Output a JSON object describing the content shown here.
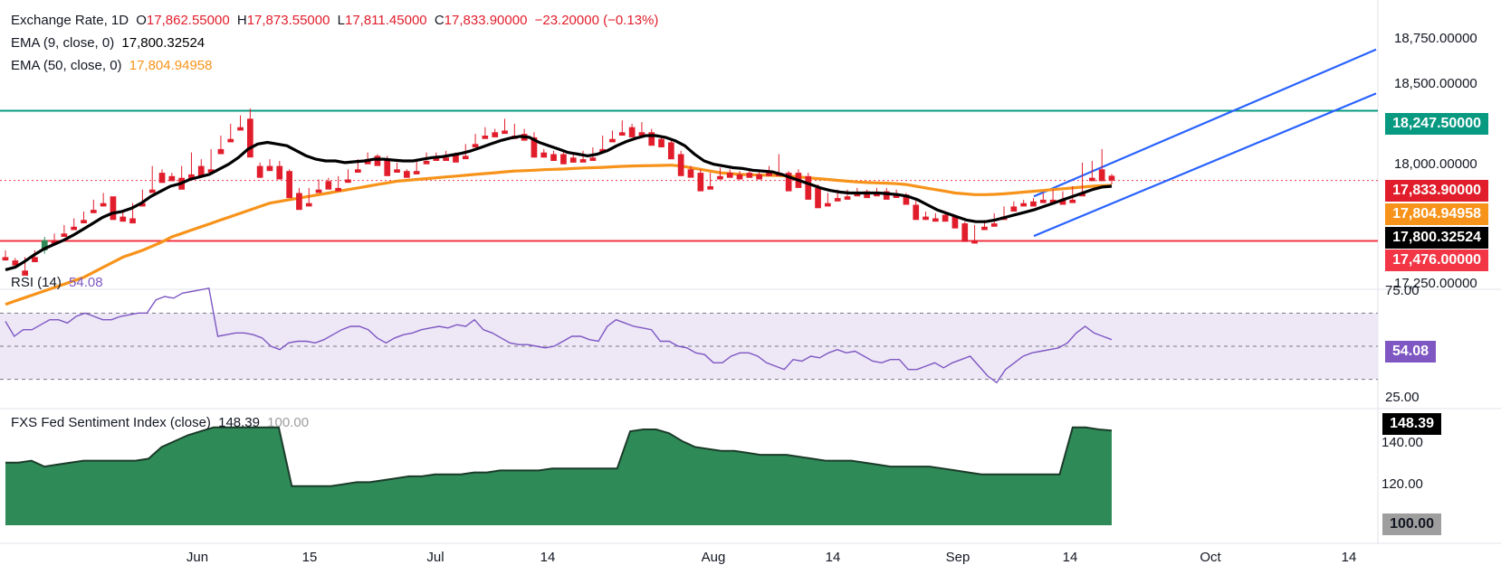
{
  "colors": {
    "up": "#26a69a",
    "upBody": "#2e8b57",
    "down": "#f23645",
    "downBody": "#e11d2b",
    "ema9": "#000000",
    "ema50": "#f7931a",
    "channel": "#2962ff",
    "resistance": "#089981",
    "support": "#f23645",
    "rsi": "#7e57c2",
    "rsiBand": "#ede7f6",
    "fsi": "#2e8b57",
    "fsiLine": "#1b3b2a"
  },
  "legend": {
    "main": {
      "name": "Exchange Rate, 1D",
      "o_label": "O",
      "o": "17,862.55000",
      "h_label": "H",
      "h": "17,873.55000",
      "l_label": "L",
      "l": "17,811.45000",
      "c_label": "C",
      "c": "17,833.90000",
      "chg": "−23.20000 (−0.13%)"
    },
    "ema9": {
      "label": "EMA (9, close, 0)",
      "value": "17,800.32524"
    },
    "ema50": {
      "label": "EMA (50, close, 0)",
      "value": "17,804.94958"
    },
    "rsi": {
      "label": "RSI (14)",
      "value": "54.08"
    },
    "fsi": {
      "label": "FXS Fed Sentiment Index (close)",
      "value": "148.39",
      "ref": "100.00"
    }
  },
  "price_axis": {
    "ticks": [
      "18,750.00000",
      "18,500.00000",
      "18,000.00000",
      "17,250.00000"
    ]
  },
  "badges": {
    "resistance": "18,247.50000",
    "close": "17,833.90000",
    "ema50": "17,804.94958",
    "ema9": "17,800.32524",
    "support": "17,476.00000",
    "rsi": "54.08",
    "fsi": "148.39",
    "fsi_ref": "100.00"
  },
  "rsi_axis": {
    "ticks": [
      "75.00",
      "25.00"
    ]
  },
  "fsi_axis": {
    "ticks": [
      "140.00",
      "120.00"
    ]
  },
  "time_axis": {
    "labels": [
      "Jun",
      "15",
      "Jul",
      "14",
      "Aug",
      "14",
      "Sep",
      "14",
      "Oct",
      "14"
    ]
  },
  "chart_data": {
    "type": "candlestick",
    "ylim": [
      17200,
      18850
    ],
    "levels": {
      "resistance": 18247.5,
      "support": 17476,
      "close": 17833.9
    },
    "channel": {
      "lower": [
        [
          0,
          17505
        ],
        [
          1,
          18350
        ]
      ],
      "upper": [
        [
          0,
          17740
        ],
        [
          1,
          18610
        ]
      ]
    },
    "x_labels": [
      "Jun",
      "15",
      "Jul",
      "14",
      "Aug",
      "14",
      "Sep",
      "14",
      "Oct",
      "14"
    ],
    "candles": [
      [
        17380,
        17420,
        17360,
        17360
      ],
      [
        17360,
        17375,
        17340,
        17330
      ],
      [
        17300,
        17380,
        17290,
        17270
      ],
      [
        17380,
        17420,
        17370,
        17350
      ],
      [
        17420,
        17500,
        17400,
        17480
      ],
      [
        17480,
        17520,
        17470,
        17460
      ],
      [
        17520,
        17570,
        17510,
        17500
      ],
      [
        17560,
        17610,
        17550,
        17540
      ],
      [
        17600,
        17650,
        17590,
        17580
      ],
      [
        17660,
        17720,
        17650,
        17640
      ],
      [
        17700,
        17760,
        17690,
        17680
      ],
      [
        17740,
        17730,
        17620,
        17600
      ],
      [
        17620,
        17660,
        17600,
        17590
      ],
      [
        17610,
        17700,
        17600,
        17580
      ],
      [
        17700,
        17780,
        17690,
        17680
      ],
      [
        17780,
        17920,
        17770,
        17760
      ],
      [
        17880,
        17900,
        17840,
        17820
      ],
      [
        17860,
        17880,
        17840,
        17830
      ],
      [
        17850,
        17920,
        17840,
        17780
      ],
      [
        17870,
        18000,
        17860,
        17840
      ],
      [
        17920,
        17960,
        17850,
        17860
      ],
      [
        17900,
        18020,
        17890,
        17880
      ],
      [
        18020,
        18100,
        18000,
        17990
      ],
      [
        18080,
        18170,
        18070,
        18060
      ],
      [
        18150,
        18220,
        18140,
        18130
      ],
      [
        18200,
        18260,
        17980,
        17970
      ],
      [
        17920,
        17940,
        17870,
        17850
      ],
      [
        17920,
        17960,
        17900,
        17890
      ],
      [
        17920,
        17950,
        17860,
        17840
      ],
      [
        17890,
        17900,
        17740,
        17730
      ],
      [
        17760,
        17790,
        17680,
        17660
      ],
      [
        17700,
        17790,
        17690,
        17680
      ],
      [
        17780,
        17840,
        17770,
        17760
      ],
      [
        17830,
        17850,
        17790,
        17780
      ],
      [
        17790,
        17860,
        17780,
        17770
      ],
      [
        17840,
        17900,
        17830,
        17820
      ],
      [
        17900,
        17960,
        17890,
        17880
      ],
      [
        17960,
        18000,
        17940,
        17930
      ],
      [
        17980,
        17990,
        17930,
        17920
      ],
      [
        17960,
        17980,
        17880,
        17860
      ],
      [
        17900,
        17940,
        17890,
        17880
      ],
      [
        17890,
        17900,
        17860,
        17850
      ],
      [
        17890,
        17950,
        17880,
        17870
      ],
      [
        17950,
        18000,
        17940,
        17930
      ],
      [
        17970,
        18000,
        17960,
        17950
      ],
      [
        17970,
        18010,
        17960,
        17950
      ],
      [
        17990,
        18000,
        17950,
        17940
      ],
      [
        17980,
        18050,
        17970,
        17960
      ],
      [
        18050,
        18110,
        18040,
        18030
      ],
      [
        18100,
        18150,
        18090,
        18080
      ],
      [
        18120,
        18140,
        18100,
        18090
      ],
      [
        18130,
        18200,
        18120,
        18110
      ],
      [
        18100,
        18170,
        18090,
        18080
      ],
      [
        18110,
        18140,
        18080,
        18070
      ],
      [
        18090,
        18120,
        17990,
        17970
      ],
      [
        18000,
        18020,
        17980,
        17970
      ],
      [
        17990,
        18010,
        17960,
        17950
      ],
      [
        17990,
        18000,
        17950,
        17930
      ],
      [
        17970,
        17990,
        17950,
        17940
      ],
      [
        17960,
        18010,
        17950,
        17940
      ],
      [
        17970,
        18030,
        17960,
        17950
      ],
      [
        18020,
        18100,
        18010,
        18000
      ],
      [
        18080,
        18130,
        18070,
        18060
      ],
      [
        18120,
        18190,
        18110,
        18100
      ],
      [
        18150,
        18170,
        18100,
        18090
      ],
      [
        18120,
        18180,
        18110,
        18100
      ],
      [
        18120,
        18140,
        18050,
        18040
      ],
      [
        18080,
        18100,
        18040,
        18030
      ],
      [
        18060,
        18070,
        17980,
        17960
      ],
      [
        17990,
        18010,
        17880,
        17860
      ],
      [
        17900,
        17920,
        17870,
        17850
      ],
      [
        17880,
        17900,
        17790,
        17770
      ],
      [
        17800,
        17880,
        17790,
        17780
      ],
      [
        17860,
        17910,
        17850,
        17840
      ],
      [
        17880,
        17900,
        17860,
        17850
      ],
      [
        17870,
        17890,
        17850,
        17840
      ],
      [
        17880,
        17900,
        17860,
        17850
      ],
      [
        17870,
        17890,
        17850,
        17840
      ],
      [
        17880,
        17920,
        17870,
        17860
      ],
      [
        17880,
        17990,
        17870,
        17860
      ],
      [
        17880,
        17890,
        17790,
        17770
      ],
      [
        17880,
        17900,
        17800,
        17790
      ],
      [
        17860,
        17880,
        17740,
        17720
      ],
      [
        17790,
        17810,
        17690,
        17670
      ],
      [
        17700,
        17760,
        17690,
        17680
      ],
      [
        17730,
        17780,
        17720,
        17710
      ],
      [
        17740,
        17780,
        17730,
        17720
      ],
      [
        17760,
        17790,
        17750,
        17740
      ],
      [
        17770,
        17780,
        17740,
        17730
      ],
      [
        17760,
        17790,
        17750,
        17740
      ],
      [
        17770,
        17790,
        17730,
        17720
      ],
      [
        17750,
        17780,
        17740,
        17730
      ],
      [
        17750,
        17760,
        17700,
        17690
      ],
      [
        17690,
        17720,
        17610,
        17600
      ],
      [
        17620,
        17650,
        17610,
        17600
      ],
      [
        17610,
        17640,
        17600,
        17590
      ],
      [
        17630,
        17650,
        17600,
        17590
      ],
      [
        17620,
        17630,
        17560,
        17550
      ],
      [
        17580,
        17590,
        17480,
        17470
      ],
      [
        17480,
        17570,
        17470,
        17460
      ],
      [
        17560,
        17600,
        17550,
        17540
      ],
      [
        17580,
        17640,
        17570,
        17560
      ],
      [
        17620,
        17680,
        17610,
        17600
      ],
      [
        17680,
        17710,
        17660,
        17650
      ],
      [
        17700,
        17720,
        17690,
        17680
      ],
      [
        17710,
        17730,
        17690,
        17680
      ],
      [
        17720,
        17760,
        17710,
        17700
      ],
      [
        17720,
        17780,
        17710,
        17700
      ],
      [
        17720,
        17770,
        17700,
        17690
      ],
      [
        17720,
        17800,
        17710,
        17700
      ],
      [
        17760,
        17940,
        17750,
        17740
      ],
      [
        17850,
        17950,
        17840,
        17830
      ],
      [
        17900,
        18020,
        17840,
        17830
      ],
      [
        17862,
        17873,
        17811,
        17833
      ]
    ],
    "ema9_path": [
      17305,
      17320,
      17355,
      17395,
      17430,
      17455,
      17480,
      17510,
      17545,
      17580,
      17615,
      17640,
      17650,
      17670,
      17700,
      17740,
      17770,
      17800,
      17815,
      17840,
      17855,
      17870,
      17900,
      17930,
      17970,
      18020,
      18050,
      18060,
      18050,
      18040,
      18010,
      17980,
      17960,
      17950,
      17950,
      17940,
      17945,
      17950,
      17960,
      17960,
      17955,
      17950,
      17950,
      17960,
      17970,
      17975,
      17985,
      17995,
      18010,
      18030,
      18050,
      18070,
      18085,
      18095,
      18090,
      18060,
      18040,
      18020,
      18000,
      17990,
      17980,
      17990,
      18010,
      18040,
      18065,
      18085,
      18100,
      18100,
      18090,
      18070,
      18040,
      17990,
      17950,
      17930,
      17920,
      17910,
      17905,
      17895,
      17890,
      17885,
      17870,
      17850,
      17830,
      17810,
      17790,
      17775,
      17765,
      17760,
      17760,
      17760,
      17760,
      17755,
      17750,
      17740,
      17720,
      17690,
      17660,
      17640,
      17620,
      17600,
      17590,
      17590,
      17600,
      17615,
      17630,
      17645,
      17660,
      17680,
      17700,
      17720,
      17740,
      17760,
      17780,
      17795,
      17800
    ],
    "ema50_path": [
      17100,
      17120,
      17140,
      17160,
      17180,
      17200,
      17220,
      17240,
      17260,
      17290,
      17320,
      17350,
      17380,
      17400,
      17420,
      17445,
      17470,
      17500,
      17520,
      17540,
      17560,
      17580,
      17600,
      17620,
      17640,
      17660,
      17680,
      17700,
      17710,
      17720,
      17730,
      17740,
      17750,
      17760,
      17770,
      17780,
      17790,
      17800,
      17810,
      17820,
      17830,
      17835,
      17840,
      17845,
      17850,
      17855,
      17860,
      17865,
      17870,
      17875,
      17880,
      17885,
      17890,
      17892,
      17895,
      17898,
      17900,
      17902,
      17905,
      17908,
      17910,
      17912,
      17915,
      17918,
      17920,
      17921,
      17922,
      17923,
      17925,
      17920,
      17910,
      17900,
      17890,
      17880,
      17875,
      17870,
      17868,
      17866,
      17865,
      17864,
      17860,
      17855,
      17850,
      17845,
      17840,
      17835,
      17830,
      17825,
      17822,
      17820,
      17818,
      17815,
      17810,
      17800,
      17790,
      17780,
      17770,
      17760,
      17755,
      17750,
      17750,
      17752,
      17755,
      17760,
      17765,
      17770,
      17775,
      17780,
      17785,
      17790,
      17795,
      17800,
      17803,
      17805
    ],
    "rsi": [
      65,
      56,
      60,
      60,
      63,
      66,
      66,
      64,
      68,
      70,
      68,
      66,
      66,
      68,
      69,
      70,
      70,
      78,
      80,
      79,
      82,
      83,
      84,
      85,
      56,
      57,
      58,
      58,
      57,
      55,
      50,
      48,
      52,
      53,
      53,
      52,
      54,
      57,
      60,
      62,
      62,
      60,
      55,
      52,
      55,
      57,
      58,
      60,
      61,
      62,
      61,
      63,
      62,
      66,
      60,
      58,
      55,
      52,
      51,
      51,
      50,
      49,
      50,
      53,
      56,
      56,
      54,
      53,
      62,
      66,
      64,
      62,
      61,
      60,
      53,
      53,
      50,
      49,
      46,
      45,
      40,
      40,
      44,
      46,
      46,
      44,
      40,
      38,
      36,
      42,
      41,
      44,
      43,
      46,
      48,
      46,
      47,
      44,
      41,
      40,
      42,
      42,
      36,
      36,
      38,
      40,
      37,
      40,
      42,
      44,
      38,
      32,
      28,
      36,
      40,
      44,
      46,
      47,
      48,
      49,
      52,
      58,
      62,
      58,
      56,
      54
    ],
    "rsi_levels": {
      "upper": 70,
      "mid": 50,
      "lower": 30
    },
    "fsi": [
      132,
      132,
      133,
      130,
      131,
      132,
      133,
      133,
      133,
      133,
      133,
      134,
      140,
      143,
      146,
      148,
      150,
      150,
      150,
      150,
      150,
      150,
      120,
      120,
      120,
      120,
      121,
      122,
      122,
      123,
      124,
      125,
      125,
      126,
      126,
      126,
      127,
      127,
      128,
      128,
      128,
      128,
      129,
      129,
      129,
      129,
      129,
      129,
      148,
      149,
      149,
      147,
      143,
      140,
      139,
      138,
      138,
      137,
      136,
      136,
      136,
      135,
      134,
      133,
      133,
      133,
      132,
      131,
      130,
      130,
      130,
      130,
      129,
      128,
      127,
      126,
      126,
      126,
      126,
      126,
      126,
      126,
      150,
      150,
      149,
      148.39
    ],
    "fsi_ylim": [
      100,
      155
    ]
  }
}
